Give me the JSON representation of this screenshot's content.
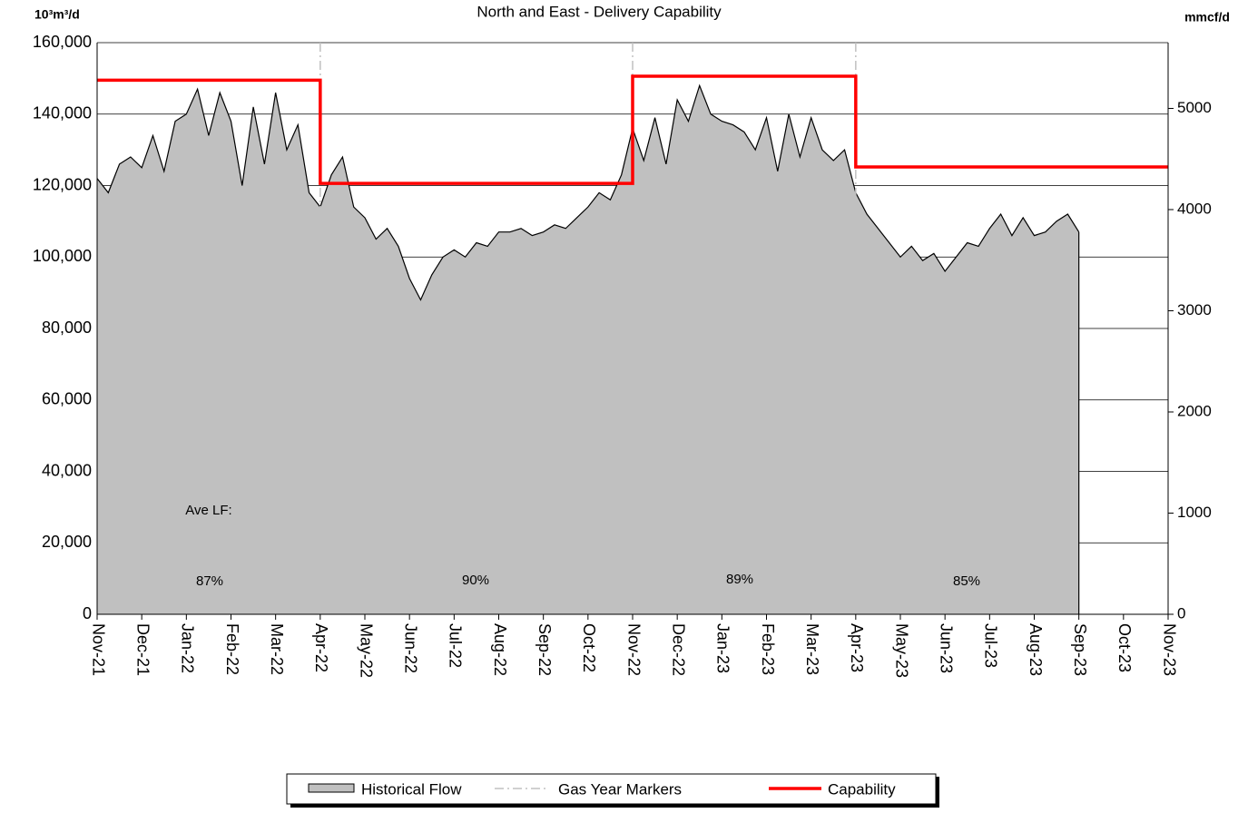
{
  "chart_data": {
    "type": "area",
    "title": "North and East - Delivery Capability",
    "ylabel": "10³m³/d",
    "y2label": "mmcf/d",
    "xlim": [
      0,
      24
    ],
    "xticks": [
      {
        "value": 0,
        "label": "Nov-21"
      },
      {
        "value": 1,
        "label": "Dec-21"
      },
      {
        "value": 2,
        "label": "Jan-22"
      },
      {
        "value": 3,
        "label": "Feb-22"
      },
      {
        "value": 4,
        "label": "Mar-22"
      },
      {
        "value": 5,
        "label": "Apr-22"
      },
      {
        "value": 6,
        "label": "May-22"
      },
      {
        "value": 7,
        "label": "Jun-22"
      },
      {
        "value": 8,
        "label": "Jul-22"
      },
      {
        "value": 9,
        "label": "Aug-22"
      },
      {
        "value": 10,
        "label": "Sep-22"
      },
      {
        "value": 11,
        "label": "Oct-22"
      },
      {
        "value": 12,
        "label": "Nov-22"
      },
      {
        "value": 13,
        "label": "Dec-22"
      },
      {
        "value": 14,
        "label": "Jan-23"
      },
      {
        "value": 15,
        "label": "Feb-23"
      },
      {
        "value": 16,
        "label": "Mar-23"
      },
      {
        "value": 17,
        "label": "Apr-23"
      },
      {
        "value": 18,
        "label": "May-23"
      },
      {
        "value": 19,
        "label": "Jun-23"
      },
      {
        "value": 20,
        "label": "Jul-23"
      },
      {
        "value": 21,
        "label": "Aug-23"
      },
      {
        "value": 22,
        "label": "Sep-23"
      },
      {
        "value": 23,
        "label": "Oct-23"
      },
      {
        "value": 24,
        "label": "Nov-23"
      }
    ],
    "ylim": [
      0,
      160000
    ],
    "yticks": [
      0,
      {
        "value": 20000,
        "label": "20,000"
      },
      {
        "value": 40000,
        "label": "40,000"
      },
      {
        "value": 60000,
        "label": "60,000"
      },
      {
        "value": 80000,
        "label": "80,000"
      },
      {
        "value": 100000,
        "label": "100,000"
      },
      {
        "value": 120000,
        "label": "120,000"
      },
      {
        "value": 140000,
        "label": "140,000"
      },
      {
        "value": 160000,
        "label": "160,000"
      }
    ],
    "y2lim": [
      0,
      5650
    ],
    "y2ticks": [
      0,
      1000,
      2000,
      3000,
      4000,
      5000
    ],
    "grid": true,
    "series": [
      {
        "name": "Historical Flow",
        "color": "#c0c0c0",
        "line_color": "#000000",
        "x": [
          0,
          0.25,
          0.5,
          0.75,
          1,
          1.25,
          1.5,
          1.75,
          2,
          2.25,
          2.5,
          2.75,
          3,
          3.25,
          3.5,
          3.75,
          4,
          4.25,
          4.5,
          4.75,
          5,
          5.25,
          5.5,
          5.75,
          6,
          6.25,
          6.5,
          6.75,
          7,
          7.25,
          7.5,
          7.75,
          8,
          8.25,
          8.5,
          8.75,
          9,
          9.25,
          9.5,
          9.75,
          10,
          10.25,
          10.5,
          10.75,
          11,
          11.25,
          11.5,
          11.75,
          12,
          12.25,
          12.5,
          12.75,
          13,
          13.25,
          13.5,
          13.75,
          14,
          14.25,
          14.5,
          14.75,
          15,
          15.25,
          15.5,
          15.75,
          16,
          16.25,
          16.5,
          16.75,
          17,
          17.25,
          17.5,
          17.75,
          18,
          18.25,
          18.5,
          18.75,
          19,
          19.25,
          19.5,
          19.75,
          20,
          20.25,
          20.5,
          20.75,
          21,
          21.25,
          21.5,
          21.75,
          22
        ],
        "values": [
          122000,
          118000,
          126000,
          128000,
          125000,
          134000,
          124000,
          138000,
          140000,
          147000,
          134000,
          146000,
          138000,
          120000,
          142000,
          126000,
          146000,
          130000,
          137000,
          118000,
          114000,
          123000,
          128000,
          114000,
          111000,
          105000,
          108000,
          103000,
          94000,
          88000,
          95000,
          100000,
          102000,
          100000,
          104000,
          103000,
          107000,
          107000,
          108000,
          106000,
          107000,
          109000,
          108000,
          111000,
          114000,
          118000,
          116000,
          123000,
          136000,
          127000,
          139000,
          126000,
          144000,
          138000,
          148000,
          140000,
          138000,
          137000,
          135000,
          130000,
          139000,
          124000,
          140000,
          128000,
          139000,
          130000,
          127000,
          130000,
          118000,
          112000,
          108000,
          104000,
          100000,
          103000,
          99000,
          101000,
          96000,
          100000,
          104000,
          103000,
          108000,
          112000,
          106000,
          111000,
          106000,
          107000,
          110000,
          112000,
          107000
        ]
      },
      {
        "name": "Gas Year Markers",
        "color": "#c0c0c0",
        "x": [
          5,
          12,
          17
        ]
      },
      {
        "name": "Capability",
        "color": "#ff0000",
        "x": [
          0,
          5,
          5,
          12,
          12,
          17,
          17,
          24
        ],
        "values": [
          149500,
          149500,
          120600,
          120600,
          150600,
          150600,
          125200,
          125200
        ]
      }
    ],
    "annotations": [
      "Ave LF:",
      "87%",
      "90%",
      "89%",
      "85%"
    ]
  }
}
